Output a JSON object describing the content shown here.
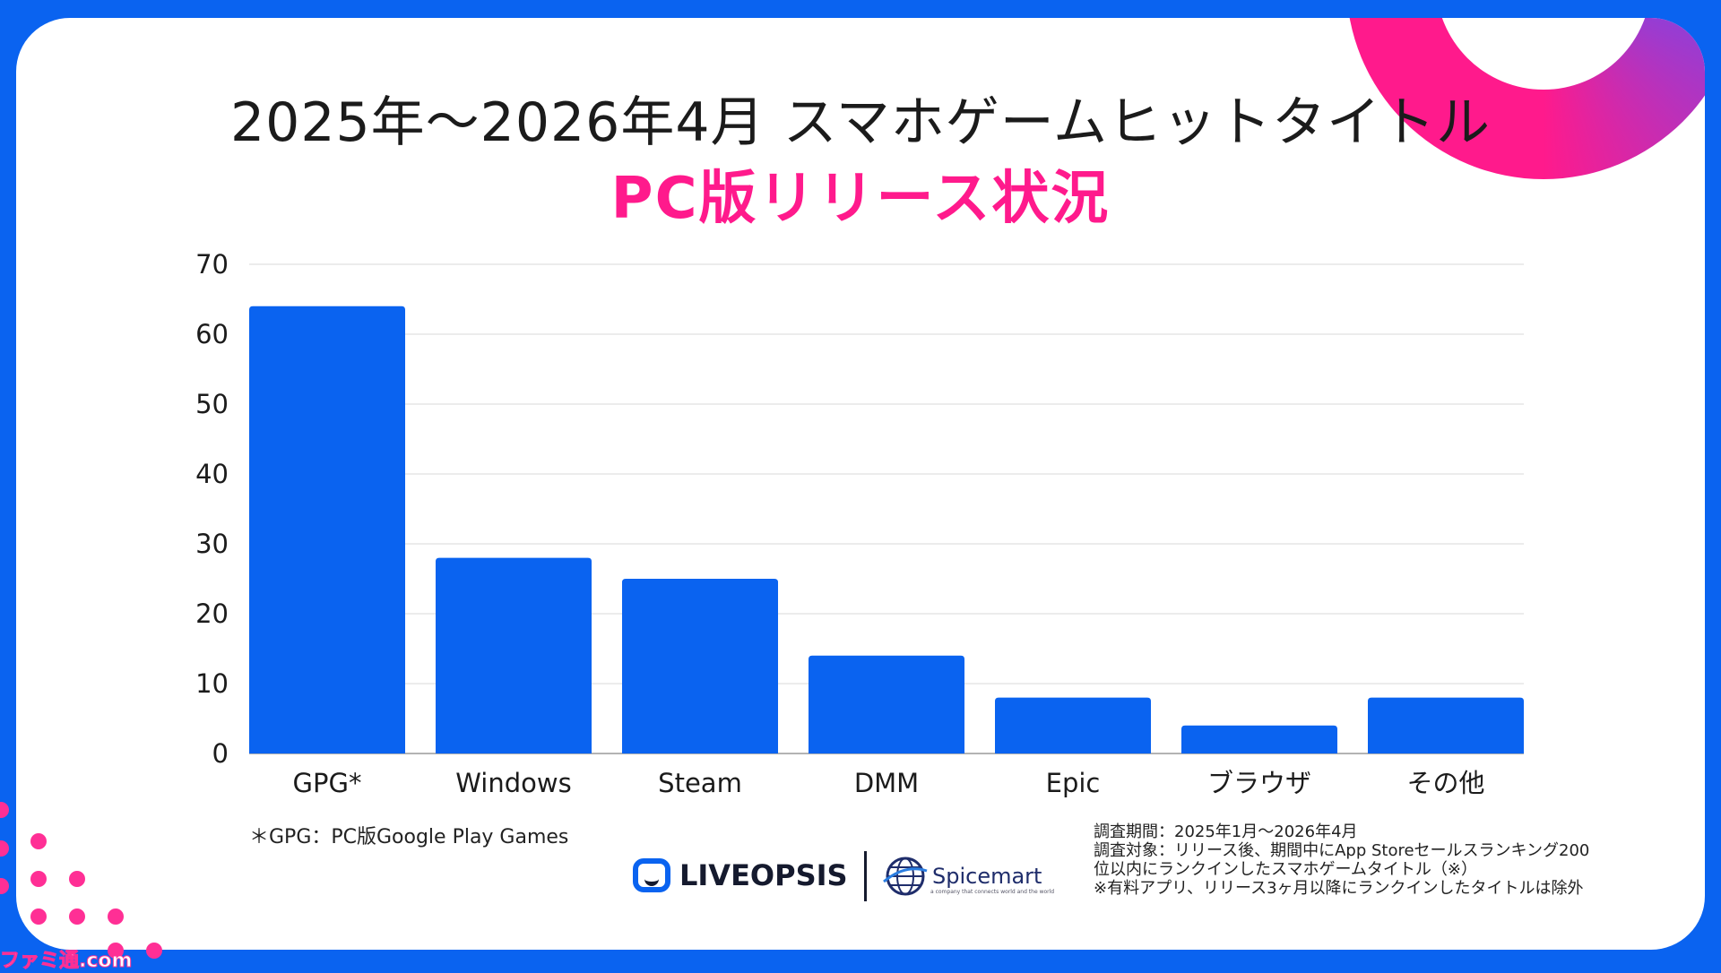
{
  "title": "2025年～2026年4月 スマホゲームヒットタイトル",
  "subtitle": "PC版リリース状況",
  "chart_data": {
    "type": "bar",
    "categories": [
      "GPG*",
      "Windows",
      "Steam",
      "DMM",
      "Epic",
      "ブラウザ",
      "その他"
    ],
    "values": [
      64,
      28,
      25,
      14,
      8,
      4,
      8
    ],
    "ylim": [
      0,
      70
    ],
    "yticks": [
      0,
      10,
      20,
      30,
      40,
      50,
      60,
      70
    ],
    "grid": true,
    "xlabel": "",
    "ylabel": ""
  },
  "footnote": "＊GPG：PC版Google Play Games",
  "logos": {
    "liveopsis": "LIVEOPSIS",
    "spicemart": "Spicemart",
    "spicemart_tagline": "a company that connects world and the world"
  },
  "survey_notes": [
    "調査期間：2025年1月～2026年4月",
    "調査対象：リリース後、期間中にApp Storeセールスランキング200",
    "位以内にランクインしたスマホゲームタイトル（※）",
    "※有料アプリ、リリース3ヶ月以降にランクインしたタイトルは除外"
  ],
  "watermark": "ファミ通.com",
  "colors": {
    "bar": "#0a63f0",
    "accent": "#ff1a8c",
    "frame": "#0a63f0"
  }
}
